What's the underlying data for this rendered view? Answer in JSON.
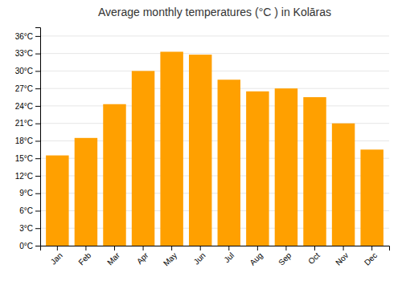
{
  "chart_data": {
    "type": "bar",
    "title": "Average monthly temperatures (°C ) in Kolāras",
    "categories": [
      "Jan",
      "Feb",
      "Mar",
      "Apr",
      "May",
      "Jun",
      "Jul",
      "Aug",
      "Sep",
      "Oct",
      "Nov",
      "Dec"
    ],
    "values": [
      15.5,
      18.5,
      24.3,
      30.0,
      33.3,
      32.8,
      28.5,
      26.5,
      27.0,
      25.5,
      21.0,
      16.5
    ],
    "color": "#ffa000",
    "ylim": [
      0,
      37.5
    ],
    "yticks": [
      {
        "value": 0,
        "label": "0°C"
      },
      {
        "value": 3,
        "label": "3°C"
      },
      {
        "value": 6,
        "label": "6°C"
      },
      {
        "value": 9,
        "label": "9°C"
      },
      {
        "value": 12,
        "label": "12°C"
      },
      {
        "value": 15,
        "label": "15°C"
      },
      {
        "value": 18,
        "label": "18°C"
      },
      {
        "value": 21,
        "label": "21°C"
      },
      {
        "value": 24,
        "label": "24°C"
      },
      {
        "value": 27,
        "label": "27°C"
      },
      {
        "value": 30,
        "label": "30°C"
      },
      {
        "value": 33,
        "label": "33°C"
      },
      {
        "value": 36,
        "label": "36°C"
      }
    ],
    "grid": true
  }
}
